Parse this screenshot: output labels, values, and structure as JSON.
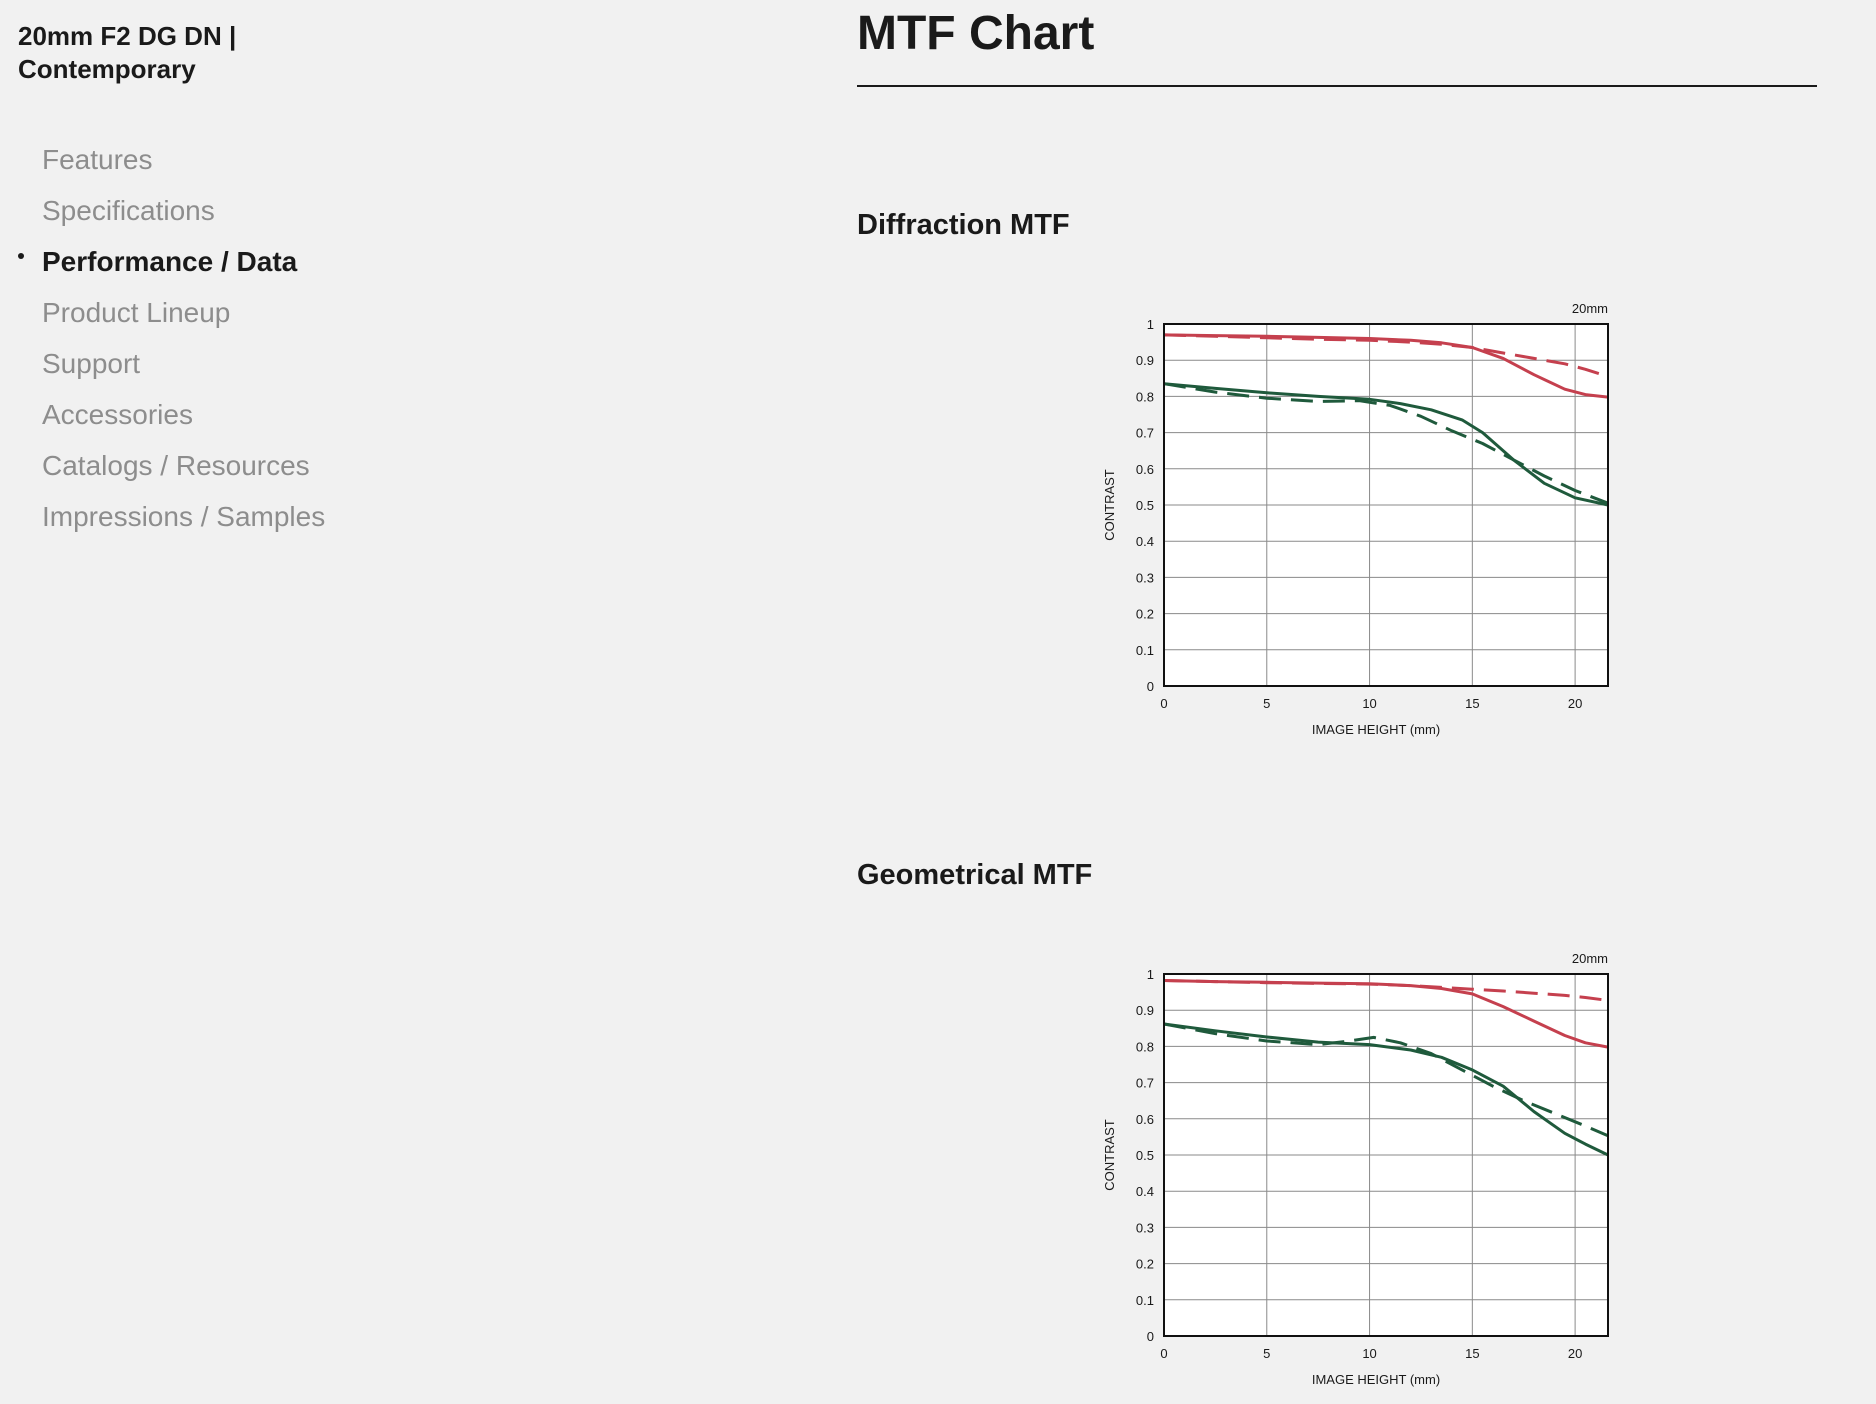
{
  "sidebar": {
    "product_title": "20mm F2 DG DN |\nContemporary",
    "items": [
      {
        "label": "Features",
        "active": false
      },
      {
        "label": "Specifications",
        "active": false
      },
      {
        "label": "Performance / Data",
        "active": true
      },
      {
        "label": "Product Lineup",
        "active": false
      },
      {
        "label": "Support",
        "active": false
      },
      {
        "label": "Accessories",
        "active": false
      },
      {
        "label": "Catalogs / Resources",
        "active": false
      },
      {
        "label": "Impressions / Samples",
        "active": false
      }
    ]
  },
  "main": {
    "title": "MTF Chart",
    "sections": [
      {
        "title": "Diffraction MTF"
      },
      {
        "title": "Geometrical MTF"
      }
    ]
  },
  "colors": {
    "red_series": "#c5404e",
    "green_series": "#1f5a3c"
  },
  "chart_data": [
    {
      "type": "line",
      "title": "Diffraction MTF",
      "focal_label": "20mm",
      "xlabel": "IMAGE HEIGHT (mm)",
      "ylabel": "CONTRAST",
      "xlim": [
        0,
        21.6
      ],
      "ylim": [
        0,
        1
      ],
      "x_ticks": [
        0,
        5,
        10,
        15,
        20
      ],
      "y_ticks": [
        0,
        0.1,
        0.2,
        0.3,
        0.4,
        0.5,
        0.6,
        0.7,
        0.8,
        0.9,
        1
      ],
      "y_tick_labels": [
        "0",
        "0.1",
        "0.2",
        "0.3",
        "0.4",
        "0.5",
        "0.6",
        "0.7",
        "0.8",
        "0.9",
        "1"
      ],
      "grid": true,
      "series": [
        {
          "color": "red",
          "style": "solid",
          "x": [
            0,
            2.5,
            5,
            7.5,
            10,
            12,
            13.5,
            15,
            16.5,
            18,
            19.5,
            20.5,
            21.6
          ],
          "y": [
            0.97,
            0.968,
            0.966,
            0.963,
            0.96,
            0.955,
            0.948,
            0.935,
            0.905,
            0.86,
            0.82,
            0.805,
            0.798
          ]
        },
        {
          "color": "red",
          "style": "dashed",
          "x": [
            0,
            2.5,
            5,
            7.5,
            10,
            12,
            13.5,
            15,
            16.5,
            18,
            19.5,
            20.5,
            21.6
          ],
          "y": [
            0.97,
            0.966,
            0.962,
            0.958,
            0.955,
            0.95,
            0.944,
            0.935,
            0.92,
            0.905,
            0.89,
            0.875,
            0.855
          ]
        },
        {
          "color": "green",
          "style": "solid",
          "x": [
            0,
            2.5,
            5,
            7.5,
            10,
            11.5,
            13,
            14.5,
            15.5,
            17,
            18.5,
            20,
            21.6
          ],
          "y": [
            0.835,
            0.822,
            0.81,
            0.8,
            0.792,
            0.78,
            0.763,
            0.735,
            0.7,
            0.625,
            0.56,
            0.52,
            0.5
          ]
        },
        {
          "color": "green",
          "style": "dashed",
          "x": [
            0,
            2.5,
            5,
            7.5,
            9.5,
            11,
            12.5,
            14,
            15.5,
            17,
            18.5,
            20,
            21.6
          ],
          "y": [
            0.835,
            0.812,
            0.795,
            0.786,
            0.788,
            0.775,
            0.745,
            0.705,
            0.67,
            0.625,
            0.58,
            0.54,
            0.505
          ]
        }
      ]
    },
    {
      "type": "line",
      "title": "Geometrical MTF",
      "focal_label": "20mm",
      "xlabel": "IMAGE HEIGHT (mm)",
      "ylabel": "CONTRAST",
      "xlim": [
        0,
        21.6
      ],
      "ylim": [
        0,
        1
      ],
      "x_ticks": [
        0,
        5,
        10,
        15,
        20
      ],
      "y_ticks": [
        0,
        0.1,
        0.2,
        0.3,
        0.4,
        0.5,
        0.6,
        0.7,
        0.8,
        0.9,
        1
      ],
      "y_tick_labels": [
        "0",
        "0.1",
        "0.2",
        "0.3",
        "0.4",
        "0.5",
        "0.6",
        "0.7",
        "0.8",
        "0.9",
        "1"
      ],
      "grid": true,
      "series": [
        {
          "color": "red",
          "style": "solid",
          "x": [
            0,
            2.5,
            5,
            7.5,
            10,
            12,
            13.5,
            15,
            16.5,
            18,
            19.5,
            20.5,
            21.6
          ],
          "y": [
            0.982,
            0.979,
            0.977,
            0.975,
            0.973,
            0.968,
            0.96,
            0.945,
            0.91,
            0.87,
            0.83,
            0.81,
            0.798
          ]
        },
        {
          "color": "red",
          "style": "dashed",
          "x": [
            0,
            2.5,
            5,
            7.5,
            10,
            12,
            13.5,
            15,
            16.5,
            18,
            19.5,
            20.5,
            21.6
          ],
          "y": [
            0.982,
            0.979,
            0.976,
            0.974,
            0.972,
            0.968,
            0.963,
            0.958,
            0.953,
            0.947,
            0.941,
            0.935,
            0.927
          ]
        },
        {
          "color": "green",
          "style": "solid",
          "x": [
            0,
            2.5,
            5,
            7.5,
            10,
            12,
            13.5,
            15,
            16.5,
            18,
            19.5,
            20.5,
            21.6
          ],
          "y": [
            0.862,
            0.843,
            0.826,
            0.812,
            0.805,
            0.79,
            0.77,
            0.735,
            0.69,
            0.62,
            0.56,
            0.53,
            0.5
          ]
        },
        {
          "color": "green",
          "style": "dashed",
          "x": [
            0,
            2.5,
            5,
            7.5,
            9,
            10.2,
            11.5,
            13,
            14.5,
            16,
            17.5,
            19,
            20.5,
            21.6
          ],
          "y": [
            0.862,
            0.835,
            0.815,
            0.805,
            0.815,
            0.825,
            0.81,
            0.78,
            0.735,
            0.69,
            0.65,
            0.615,
            0.58,
            0.553
          ]
        }
      ]
    }
  ]
}
